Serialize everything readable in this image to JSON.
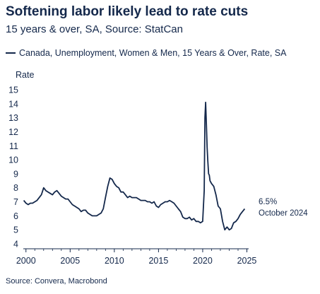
{
  "title": "Softening labor likely lead to rate cuts",
  "subtitle": "15 years & over, SA, Source: StatCan",
  "source": "Source: Convera, Macrobond",
  "colors": {
    "line": "#14284b",
    "text": "#14284b"
  },
  "chart_data": {
    "type": "line",
    "title": "Softening labor likely lead to rate cuts",
    "ylabel": "Rate",
    "xlabel": "",
    "ylim": [
      4,
      15
    ],
    "xlim": [
      1999.7,
      2025.2
    ],
    "grid": false,
    "legend_placement": "top-left",
    "yticks": [
      "4",
      "5",
      "6",
      "7",
      "8",
      "9",
      "10",
      "11",
      "12",
      "13",
      "14",
      "15"
    ],
    "xticks": [
      "2000",
      "2005",
      "2010",
      "2015",
      "2020",
      "2025"
    ],
    "annotations": [
      {
        "text": "6.5%"
      },
      {
        "text": "October 2024"
      }
    ],
    "series": [
      {
        "name": "Canada, Unemployment, Women & Men, 15 Years & Over, Rate, SA",
        "x": [
          1999.75,
          2000.0,
          2000.25,
          2000.5,
          2000.75,
          2001.0,
          2001.25,
          2001.5,
          2001.75,
          2002.0,
          2002.25,
          2002.5,
          2002.75,
          2003.0,
          2003.25,
          2003.5,
          2003.75,
          2004.0,
          2004.25,
          2004.5,
          2004.75,
          2005.0,
          2005.25,
          2005.5,
          2005.75,
          2006.0,
          2006.25,
          2006.5,
          2006.75,
          2007.0,
          2007.25,
          2007.5,
          2007.75,
          2008.0,
          2008.25,
          2008.5,
          2008.75,
          2009.0,
          2009.25,
          2009.5,
          2009.75,
          2010.0,
          2010.25,
          2010.5,
          2010.75,
          2011.0,
          2011.25,
          2011.5,
          2011.75,
          2012.0,
          2012.25,
          2012.5,
          2012.75,
          2013.0,
          2013.25,
          2013.5,
          2013.75,
          2014.0,
          2014.25,
          2014.5,
          2014.75,
          2015.0,
          2015.25,
          2015.5,
          2015.75,
          2016.0,
          2016.25,
          2016.5,
          2016.75,
          2017.0,
          2017.25,
          2017.5,
          2017.75,
          2018.0,
          2018.25,
          2018.5,
          2018.75,
          2019.0,
          2019.25,
          2019.5,
          2019.75,
          2020.0,
          2020.17,
          2020.25,
          2020.33,
          2020.42,
          2020.5,
          2020.58,
          2020.67,
          2020.75,
          2020.83,
          2021.0,
          2021.25,
          2021.5,
          2021.75,
          2022.0,
          2022.25,
          2022.5,
          2022.75,
          2023.0,
          2023.25,
          2023.5,
          2023.75,
          2024.0,
          2024.25,
          2024.5,
          2024.75
        ],
        "y": [
          7.1,
          6.9,
          6.8,
          6.9,
          6.9,
          7.0,
          7.1,
          7.3,
          7.5,
          8.0,
          7.8,
          7.7,
          7.6,
          7.5,
          7.7,
          7.8,
          7.6,
          7.4,
          7.3,
          7.2,
          7.2,
          7.0,
          6.8,
          6.7,
          6.6,
          6.5,
          6.3,
          6.4,
          6.4,
          6.2,
          6.1,
          6.0,
          6.0,
          6.0,
          6.1,
          6.2,
          6.5,
          7.3,
          8.1,
          8.7,
          8.6,
          8.3,
          8.1,
          8.0,
          7.7,
          7.7,
          7.5,
          7.3,
          7.4,
          7.3,
          7.3,
          7.3,
          7.2,
          7.1,
          7.1,
          7.1,
          7.0,
          7.0,
          6.9,
          7.0,
          6.7,
          6.6,
          6.8,
          6.9,
          7.0,
          7.0,
          7.1,
          7.0,
          6.9,
          6.7,
          6.5,
          6.3,
          5.9,
          5.8,
          5.8,
          5.9,
          5.7,
          5.8,
          5.6,
          5.6,
          5.5,
          5.6,
          7.8,
          13.0,
          14.1,
          12.5,
          10.9,
          9.9,
          9.0,
          8.9,
          8.5,
          8.3,
          8.1,
          7.5,
          6.7,
          6.5,
          5.6,
          5.0,
          5.2,
          5.0,
          5.1,
          5.5,
          5.6,
          5.8,
          6.1,
          6.3,
          6.5
        ]
      }
    ]
  }
}
